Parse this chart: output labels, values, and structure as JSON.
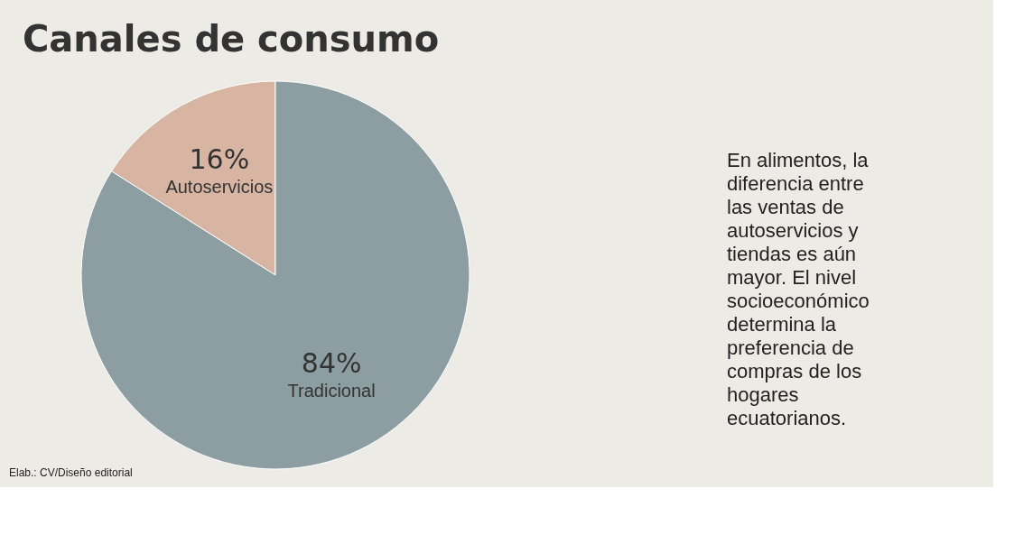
{
  "chart_data": {
    "type": "pie",
    "title": "Canales de consumo",
    "categories": [
      "Autoservicios",
      "Tradicional"
    ],
    "values": [
      16,
      84
    ],
    "colors": [
      "#d8b4a2",
      "#8d9ea3"
    ],
    "value_labels": [
      "16%",
      "84%"
    ],
    "annotations": [
      "En alimentos, la diferencia entre las ventas de autoservicios y tiendas es aún mayor. El nivel socioeconómico determina la preferencia de compras de los hogares ecuatorianos.",
      "Elab.: CV/Diseño editorial"
    ]
  }
}
